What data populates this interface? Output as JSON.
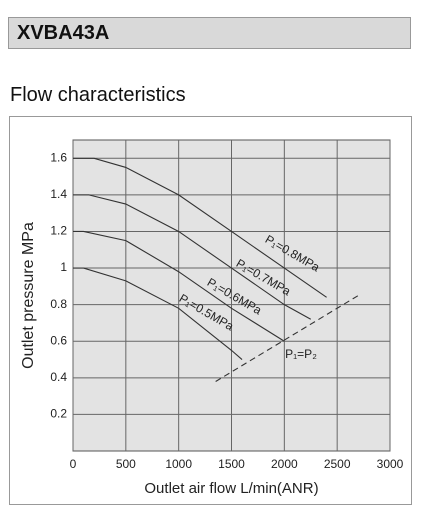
{
  "header": {
    "title": "XVBA43A"
  },
  "chart_data": {
    "type": "line",
    "title": "Flow characteristics",
    "x_label": "Outlet air flow L/min(ANR)",
    "y_label": "Outlet pressure MPa",
    "xlim": [
      0,
      3000
    ],
    "xticks": [
      0,
      500,
      1000,
      1500,
      2000,
      2500,
      3000
    ],
    "ylim": [
      0,
      1.7
    ],
    "yticks": [
      0.2,
      0.4,
      0.6,
      0.8,
      1,
      1.2,
      1.4,
      1.6
    ],
    "grid": true,
    "series": [
      {
        "name": "P₁=0.8MPa",
        "color": "#333333",
        "x": [
          0,
          200,
          500,
          1000,
          1500,
          2000,
          2400
        ],
        "values": [
          1.6,
          1.6,
          1.55,
          1.4,
          1.2,
          1.0,
          0.84
        ]
      },
      {
        "name": "P₁=0.7MPa",
        "color": "#333333",
        "x": [
          0,
          150,
          500,
          1000,
          1500,
          2000,
          2250
        ],
        "values": [
          1.4,
          1.4,
          1.35,
          1.2,
          1.0,
          0.8,
          0.72
        ]
      },
      {
        "name": "P₁=0.6MPa",
        "color": "#333333",
        "x": [
          0,
          100,
          500,
          1000,
          1500,
          2000
        ],
        "values": [
          1.2,
          1.2,
          1.15,
          0.98,
          0.78,
          0.6
        ]
      },
      {
        "name": "P₁=0.5MPa",
        "color": "#333333",
        "x": [
          0,
          100,
          500,
          1000,
          1500,
          1600
        ],
        "values": [
          1.0,
          1.0,
          0.93,
          0.78,
          0.55,
          0.5
        ]
      },
      {
        "name": "P₁=P₂",
        "color": "#333333",
        "dashed": true,
        "x": [
          1350,
          2700
        ],
        "values": [
          0.38,
          0.85
        ]
      }
    ]
  }
}
